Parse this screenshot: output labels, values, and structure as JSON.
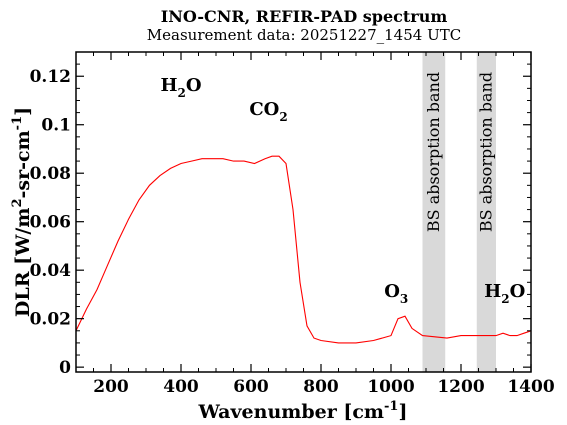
{
  "chart_data": {
    "type": "line",
    "title": "INO-CNR, REFIR-PAD spectrum",
    "subtitle": "Measurement data: 20251227_1454 UTC",
    "xlabel": {
      "main": "Wavenumber [cm",
      "sup": "-1",
      "tail": "]"
    },
    "ylabel": {
      "a": "DLR [W/m",
      "sup1": "2",
      "b": "-sr-cm",
      "sup2": "-1",
      "c": "]"
    },
    "xlim": [
      100,
      1400
    ],
    "ylim": [
      -0.002,
      0.13
    ],
    "xticks": [
      200,
      400,
      600,
      800,
      1000,
      1200,
      1400
    ],
    "yticks": [
      0,
      0.02,
      0.04,
      0.06,
      0.08,
      0.1,
      0.12
    ],
    "ytick_labels": [
      "0",
      "0.02",
      "0.04",
      "0.06",
      "0.08",
      "0.1",
      "0.12"
    ],
    "line_color": "#ff0000",
    "bands": [
      {
        "x0": 1090,
        "x1": 1155,
        "label": "BS absorption band",
        "color": "#d9d9d9"
      },
      {
        "x0": 1245,
        "x1": 1300,
        "label": "BS absorption band",
        "color": "#d9d9d9"
      }
    ],
    "annotations": [
      {
        "base": "H",
        "sub": "2",
        "tail": "O",
        "x": 400,
        "y": 0.114
      },
      {
        "base": "CO",
        "sub": "2",
        "tail": "",
        "x": 650,
        "y": 0.104
      },
      {
        "base": "O",
        "sub": "3",
        "tail": "",
        "x": 1015,
        "y": 0.029
      },
      {
        "base": "H",
        "sub": "2",
        "tail": "O",
        "x": 1325,
        "y": 0.029
      }
    ],
    "series": [
      {
        "x": [
          100,
          130,
          160,
          190,
          220,
          250,
          280,
          310,
          340,
          370,
          400,
          430,
          460,
          490,
          520,
          550,
          580,
          610,
          640,
          660,
          670,
          680,
          700,
          720,
          740,
          760,
          780,
          800,
          850,
          900,
          950,
          1000,
          1020,
          1040,
          1060,
          1090,
          1160,
          1200,
          1240,
          1300,
          1320,
          1340,
          1360,
          1380,
          1400
        ],
        "y": [
          0.015,
          0.024,
          0.032,
          0.042,
          0.052,
          0.061,
          0.069,
          0.075,
          0.079,
          0.082,
          0.084,
          0.085,
          0.086,
          0.086,
          0.086,
          0.085,
          0.085,
          0.084,
          0.086,
          0.087,
          0.087,
          0.087,
          0.084,
          0.065,
          0.035,
          0.017,
          0.012,
          0.011,
          0.01,
          0.01,
          0.011,
          0.013,
          0.02,
          0.021,
          0.016,
          0.013,
          0.012,
          0.013,
          0.013,
          0.013,
          0.014,
          0.013,
          0.013,
          0.014,
          0.015
        ]
      }
    ]
  }
}
